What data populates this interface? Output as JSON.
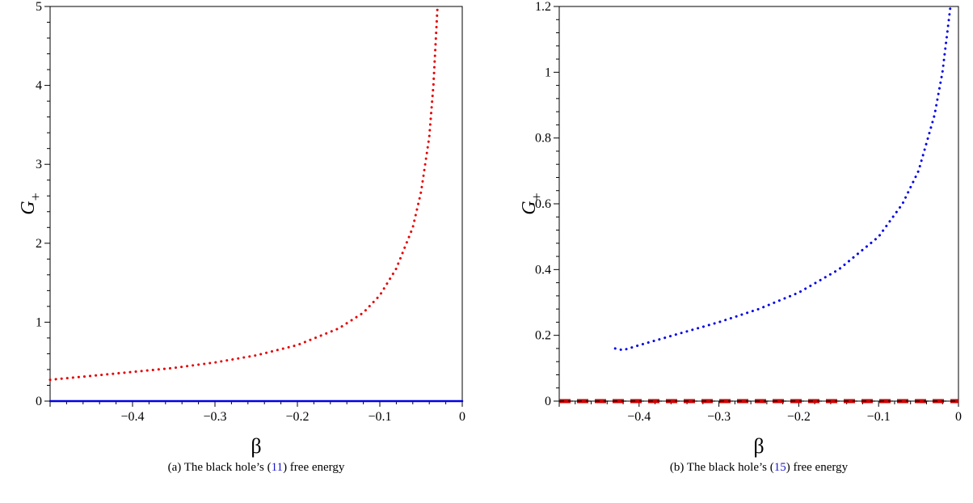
{
  "chart_data": [
    {
      "type": "line",
      "xlabel": "β",
      "ylabel": "G",
      "ylabel_sub": "+",
      "xlim": [
        -0.5,
        0
      ],
      "ylim": [
        0,
        5
      ],
      "xticks": [
        -0.4,
        -0.3,
        -0.2,
        -0.1,
        0
      ],
      "xtick_labels": [
        "−0.4",
        "−0.3",
        "−0.2",
        "−0.1",
        "0"
      ],
      "yticks": [
        0,
        1,
        2,
        3,
        4,
        5
      ],
      "ytick_labels": [
        "0",
        "1",
        "2",
        "3",
        "4",
        "5"
      ],
      "grid": false,
      "caption": {
        "prefix": "(a) The black hole’s (",
        "ref": "11",
        "suffix": ") free energy"
      },
      "series": [
        {
          "color": "#e60000",
          "style": "dotted",
          "x": [
            -0.5,
            -0.45,
            -0.4,
            -0.35,
            -0.3,
            -0.25,
            -0.2,
            -0.15,
            -0.12,
            -0.1,
            -0.08,
            -0.06,
            -0.05,
            -0.04,
            -0.035,
            -0.03
          ],
          "y": [
            0.27,
            0.32,
            0.37,
            0.42,
            0.49,
            0.58,
            0.71,
            0.92,
            1.12,
            1.34,
            1.68,
            2.2,
            2.65,
            3.35,
            4.0,
            5.0
          ]
        },
        {
          "color": "#0000e6",
          "style": "solid",
          "x": [
            -0.5,
            0
          ],
          "y": [
            0,
            0
          ]
        }
      ]
    },
    {
      "type": "line",
      "xlabel": "β",
      "ylabel": "G",
      "ylabel_sub": "+",
      "xlim": [
        -0.5,
        0
      ],
      "ylim": [
        0,
        1.2
      ],
      "xticks": [
        -0.4,
        -0.3,
        -0.2,
        -0.1,
        0
      ],
      "xtick_labels": [
        "−0.4",
        "−0.3",
        "−0.2",
        "−0.1",
        "0"
      ],
      "yticks": [
        0,
        0.2,
        0.4,
        0.6,
        0.8,
        1,
        1.2
      ],
      "ytick_labels": [
        "0",
        "0.2",
        "0.4",
        "0.6",
        "0.8",
        "1",
        "1.2"
      ],
      "grid": false,
      "caption": {
        "prefix": "(b) The black hole’s (",
        "ref": "15",
        "suffix": ") free energy"
      },
      "series": [
        {
          "color": "#0000e6",
          "style": "dotted",
          "x": [
            -0.43,
            -0.42,
            -0.4,
            -0.35,
            -0.3,
            -0.25,
            -0.2,
            -0.15,
            -0.1,
            -0.07,
            -0.05,
            -0.03,
            -0.02,
            -0.01
          ],
          "y": [
            0.16,
            0.155,
            0.17,
            0.205,
            0.24,
            0.28,
            0.33,
            0.4,
            0.5,
            0.6,
            0.7,
            0.87,
            1.0,
            1.2
          ]
        },
        {
          "color": "#cc0000",
          "style": "dashed",
          "x": [
            -0.5,
            0
          ],
          "y": [
            0,
            0
          ]
        },
        {
          "color": "#000000",
          "style": "dashed-thin",
          "x": [
            -0.5,
            0
          ],
          "y": [
            0,
            0
          ]
        }
      ]
    }
  ]
}
